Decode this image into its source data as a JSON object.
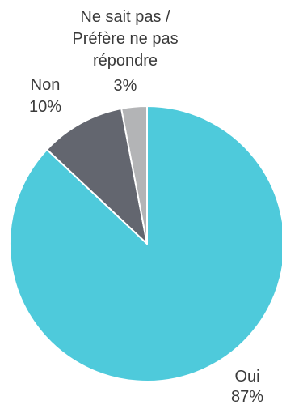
{
  "chart_data": {
    "type": "pie",
    "series": [
      {
        "values": [
          {
            "label": "Oui",
            "value": 87,
            "value_label": "87%",
            "color": "#4ECADB"
          },
          {
            "label": "Non",
            "value": 10,
            "value_label": "10%",
            "color": "#63666F"
          },
          {
            "label": "Ne sait pas / Préfère ne pas répondre",
            "value": 3,
            "value_label": "3%",
            "color": "#B3B4B6"
          }
        ]
      }
    ],
    "legend": "none",
    "start_angle": "12 o'clock",
    "direction": "clockwise"
  },
  "labels": {
    "oui": {
      "name": "Oui",
      "value": "87%"
    },
    "non": {
      "name": "Non",
      "value": "10%"
    },
    "nsp": {
      "line1": "Ne sait pas /",
      "line2": "Préfère ne pas",
      "line3": "répondre",
      "value": "3%"
    }
  }
}
